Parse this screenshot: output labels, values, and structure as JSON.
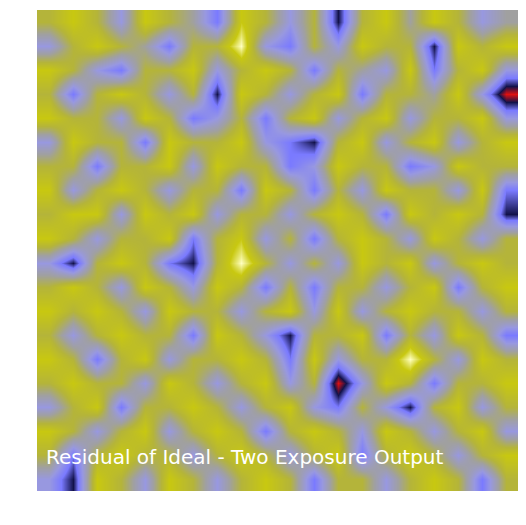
{
  "chart_data": {
    "type": "heatmap",
    "title": "Residual of Ideal - Two Exposure Output",
    "tick_labels": false,
    "color_range": [
      -4,
      3
    ],
    "cells": [
      [
        1,
        2,
        1,
        -1,
        2,
        1,
        0,
        -2,
        2,
        1,
        -1,
        1,
        -3,
        1,
        2,
        0,
        2,
        1,
        -1,
        0
      ],
      [
        -1,
        1,
        2,
        1,
        0,
        -2,
        1,
        1,
        3,
        -1,
        -2,
        1,
        -1,
        2,
        1,
        1,
        -3,
        2,
        1,
        2
      ],
      [
        2,
        1,
        -1,
        -2,
        1,
        1,
        2,
        -1,
        1,
        2,
        1,
        -2,
        1,
        0,
        -1,
        2,
        -2,
        1,
        2,
        -1
      ],
      [
        1,
        -2,
        1,
        2,
        1,
        -1,
        1,
        -3,
        2,
        1,
        -1,
        1,
        2,
        -2,
        1,
        1,
        0,
        2,
        -1,
        -4
      ],
      [
        2,
        1,
        1,
        -1,
        2,
        1,
        -2,
        -1,
        1,
        -2,
        1,
        2,
        -1,
        1,
        2,
        -1,
        1,
        1,
        2,
        -1
      ],
      [
        -1,
        2,
        1,
        1,
        -2,
        2,
        1,
        1,
        2,
        -1,
        -2,
        -3,
        1,
        2,
        -1,
        1,
        2,
        -1,
        1,
        2
      ],
      [
        1,
        1,
        -2,
        1,
        1,
        2,
        -1,
        2,
        1,
        1,
        -2,
        -1,
        2,
        1,
        1,
        -2,
        -1,
        2,
        1,
        1
      ],
      [
        2,
        -1,
        1,
        2,
        1,
        -1,
        1,
        1,
        -2,
        2,
        1,
        -2,
        1,
        -1,
        2,
        1,
        1,
        -1,
        2,
        -2
      ],
      [
        1,
        2,
        2,
        -1,
        2,
        1,
        2,
        -1,
        1,
        1,
        -1,
        1,
        2,
        1,
        -2,
        2,
        1,
        2,
        1,
        -3
      ],
      [
        2,
        1,
        -1,
        1,
        1,
        2,
        -2,
        1,
        2,
        -1,
        1,
        -2,
        1,
        2,
        1,
        -1,
        2,
        1,
        -1,
        1
      ],
      [
        -1,
        -3,
        1,
        2,
        1,
        -2,
        -3,
        1,
        3,
        1,
        -1,
        1,
        -1,
        2,
        1,
        2,
        -1,
        1,
        2,
        1
      ],
      [
        1,
        2,
        1,
        -1,
        2,
        1,
        -1,
        2,
        1,
        -2,
        1,
        -2,
        1,
        1,
        -1,
        1,
        2,
        -2,
        1,
        2
      ],
      [
        2,
        1,
        2,
        1,
        -1,
        2,
        1,
        1,
        -1,
        1,
        2,
        -1,
        2,
        -1,
        1,
        2,
        1,
        1,
        -1,
        1
      ],
      [
        1,
        -1,
        1,
        2,
        1,
        1,
        -2,
        2,
        1,
        -1,
        -3,
        1,
        1,
        2,
        -2,
        1,
        -1,
        2,
        1,
        -2
      ],
      [
        2,
        1,
        -2,
        1,
        2,
        -1,
        1,
        1,
        2,
        1,
        -2,
        2,
        -1,
        1,
        1,
        3,
        1,
        -1,
        2,
        1
      ],
      [
        1,
        2,
        1,
        1,
        -1,
        2,
        1,
        -1,
        1,
        2,
        -1,
        1,
        -4,
        -1,
        2,
        1,
        -2,
        1,
        1,
        2
      ],
      [
        -1,
        1,
        2,
        -2,
        1,
        1,
        2,
        1,
        -1,
        1,
        2,
        -1,
        -2,
        1,
        -1,
        -3,
        1,
        2,
        -1,
        1
      ],
      [
        2,
        1,
        -1,
        1,
        2,
        -1,
        1,
        2,
        1,
        -2,
        1,
        2,
        1,
        -1,
        2,
        1,
        -1,
        1,
        2,
        -1
      ],
      [
        1,
        -2,
        1,
        2,
        1,
        1,
        -1,
        1,
        2,
        1,
        -1,
        1,
        2,
        -2,
        1,
        2,
        1,
        -1,
        1,
        2
      ],
      [
        -1,
        -3,
        2,
        1,
        -1,
        2,
        1,
        -1,
        1,
        2,
        1,
        -2,
        1,
        1,
        -1,
        1,
        2,
        1,
        -2,
        1
      ]
    ]
  }
}
